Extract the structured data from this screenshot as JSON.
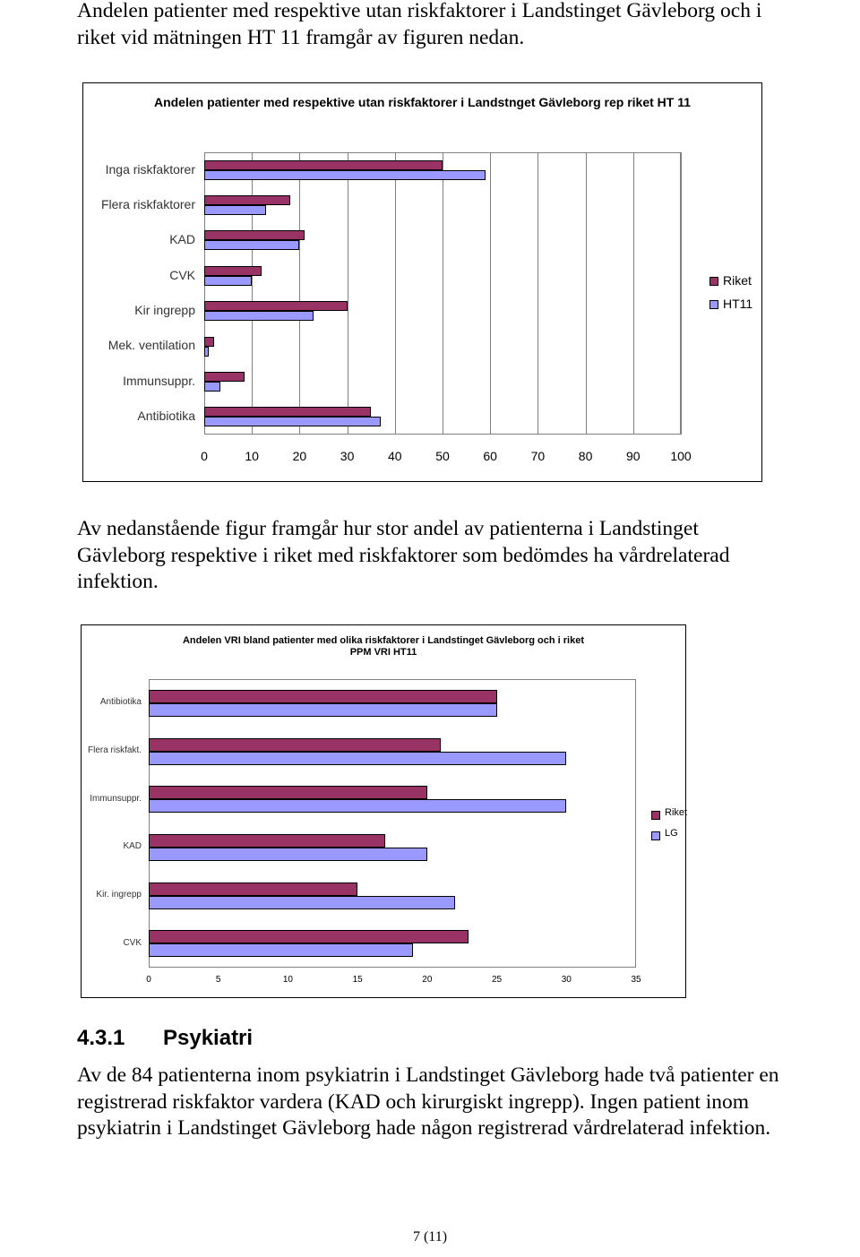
{
  "paragraphs": [
    "Andelen patienter med respektive utan riskfaktorer i Landstinget Gävleborg och i riket vid mätningen HT 11 framgår av figuren nedan.",
    "Av nedanstående figur framgår hur stor andel av patienterna i Landstinget Gävleborg respektive i riket med riskfaktorer som bedömdes ha vårdrelaterad infektion.",
    "Av de 84 patienterna inom psykiatrin i Landstinget Gävleborg hade två patienter en registrerad riskfaktor vardera (KAD och kirurgiskt ingrepp). Ingen patient inom psykiatrin i Landstinget Gävleborg hade någon registrerad vårdrelaterad infektion."
  ],
  "heading": {
    "number": "4.3.1",
    "text": "Psykiatri"
  },
  "footer": "7 (11)",
  "chart_data": [
    {
      "type": "bar",
      "orientation": "horizontal",
      "title": "Andelen patienter med respektive utan riskfaktorer i Landstnget Gävleborg rep riket HT 11",
      "categories": [
        "Inga riskfaktorer",
        "Flera riskfaktorer",
        "KAD",
        "CVK",
        "Kir ingrepp",
        "Mek. ventilation",
        "Immunsuppr.",
        "Antibiotika"
      ],
      "series": [
        {
          "name": "Riket",
          "color": "#993366",
          "values": [
            50,
            18,
            21,
            12,
            30,
            2,
            8.5,
            35
          ]
        },
        {
          "name": "HT11",
          "color": "#9999ff",
          "values": [
            59,
            13,
            20,
            10,
            23,
            1,
            3.4,
            37
          ]
        }
      ],
      "xlim": [
        0,
        100
      ],
      "xticks": [
        0,
        10,
        20,
        30,
        40,
        50,
        60,
        70,
        80,
        90,
        100
      ],
      "grid": true,
      "legend": "right"
    },
    {
      "type": "bar",
      "orientation": "horizontal",
      "title": "Andelen VRI bland patienter med olika riskfaktorer i Landstinget Gävleborg och i riket",
      "subtitle": "PPM VRI HT11",
      "categories": [
        "Antibiotika",
        "Flera riskfakt.",
        "Immunsuppr.",
        "KAD",
        "Kir. ingrepp",
        "CVK"
      ],
      "series": [
        {
          "name": "Riket",
          "color": "#993366",
          "values": [
            25,
            21,
            20,
            17,
            15,
            23
          ]
        },
        {
          "name": "LG",
          "color": "#9999ff",
          "values": [
            25,
            30,
            30,
            20,
            22,
            19
          ]
        }
      ],
      "xlim": [
        0,
        35
      ],
      "xticks": [
        0,
        5,
        10,
        15,
        20,
        25,
        30,
        35
      ],
      "grid": false,
      "legend": "right"
    }
  ]
}
